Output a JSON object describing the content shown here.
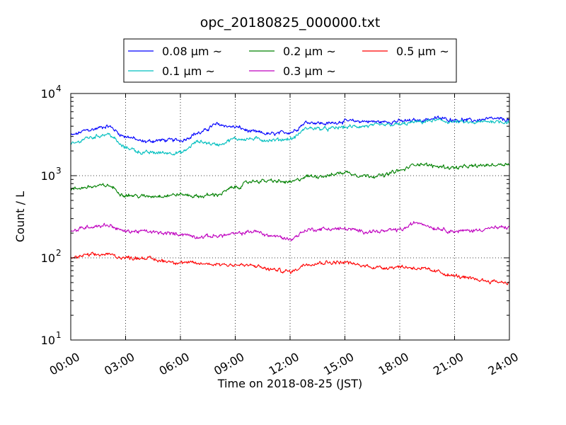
{
  "chart_data": {
    "type": "line",
    "title": "opc_20180825_000000.txt",
    "xlabel": "Time on 2018-08-25 (JST)",
    "ylabel": "Count / L",
    "yscale": "log",
    "xlim": [
      "00:00",
      "24:00"
    ],
    "ylim": [
      10,
      10000
    ],
    "grid": true,
    "legend_position": "top-center (above plot)",
    "x_ticks": [
      "00:00",
      "03:00",
      "06:00",
      "09:00",
      "12:00",
      "15:00",
      "18:00",
      "21:00",
      "24:00"
    ],
    "y_ticks": [
      {
        "base": "10",
        "exp": "1",
        "value": 10
      },
      {
        "base": "10",
        "exp": "2",
        "value": 100
      },
      {
        "base": "10",
        "exp": "3",
        "value": 1000
      },
      {
        "base": "10",
        "exp": "4",
        "value": 10000
      }
    ],
    "x": [
      "00:00",
      "01:00",
      "02:00",
      "03:00",
      "04:00",
      "05:00",
      "06:00",
      "07:00",
      "08:00",
      "09:00",
      "10:00",
      "11:00",
      "12:00",
      "13:00",
      "14:00",
      "15:00",
      "16:00",
      "17:00",
      "18:00",
      "19:00",
      "20:00",
      "21:00",
      "22:00",
      "23:00",
      "24:00"
    ],
    "series": [
      {
        "name": "0.08",
        "unit": "μm",
        "suffix": "~",
        "color": "#0000ff",
        "values": [
          3100,
          3600,
          4000,
          3000,
          2600,
          2700,
          2700,
          3300,
          4200,
          3900,
          3400,
          3200,
          3400,
          4500,
          4300,
          4600,
          4600,
          4500,
          4600,
          4700,
          5000,
          4800,
          4700,
          4900,
          4800
        ]
      },
      {
        "name": "0.1",
        "unit": "μm",
        "suffix": "~",
        "color": "#00bfbf",
        "values": [
          2400,
          2900,
          3200,
          2200,
          1900,
          1900,
          1900,
          2600,
          2400,
          2800,
          2800,
          2700,
          2800,
          3800,
          3700,
          3900,
          4000,
          4100,
          4200,
          4500,
          4700,
          4500,
          4400,
          4600,
          4500
        ]
      },
      {
        "name": "0.2",
        "unit": "μm",
        "suffix": "~",
        "color": "#008000",
        "values": [
          680,
          730,
          760,
          580,
          560,
          570,
          590,
          560,
          590,
          720,
          860,
          860,
          830,
          980,
          1000,
          1100,
          1000,
          1000,
          1150,
          1400,
          1300,
          1250,
          1300,
          1350,
          1400
        ]
      },
      {
        "name": "0.3",
        "unit": "μm",
        "suffix": "~",
        "color": "#bf00bf",
        "values": [
          210,
          240,
          250,
          210,
          210,
          200,
          195,
          180,
          185,
          195,
          210,
          185,
          170,
          220,
          225,
          225,
          210,
          210,
          220,
          270,
          230,
          210,
          215,
          230,
          235
        ]
      },
      {
        "name": "0.5",
        "unit": "μm",
        "suffix": "~",
        "color": "#ff0000",
        "values": [
          100,
          108,
          110,
          100,
          100,
          92,
          88,
          85,
          84,
          82,
          80,
          72,
          68,
          85,
          88,
          88,
          80,
          76,
          78,
          75,
          68,
          60,
          55,
          52,
          50
        ]
      }
    ]
  }
}
